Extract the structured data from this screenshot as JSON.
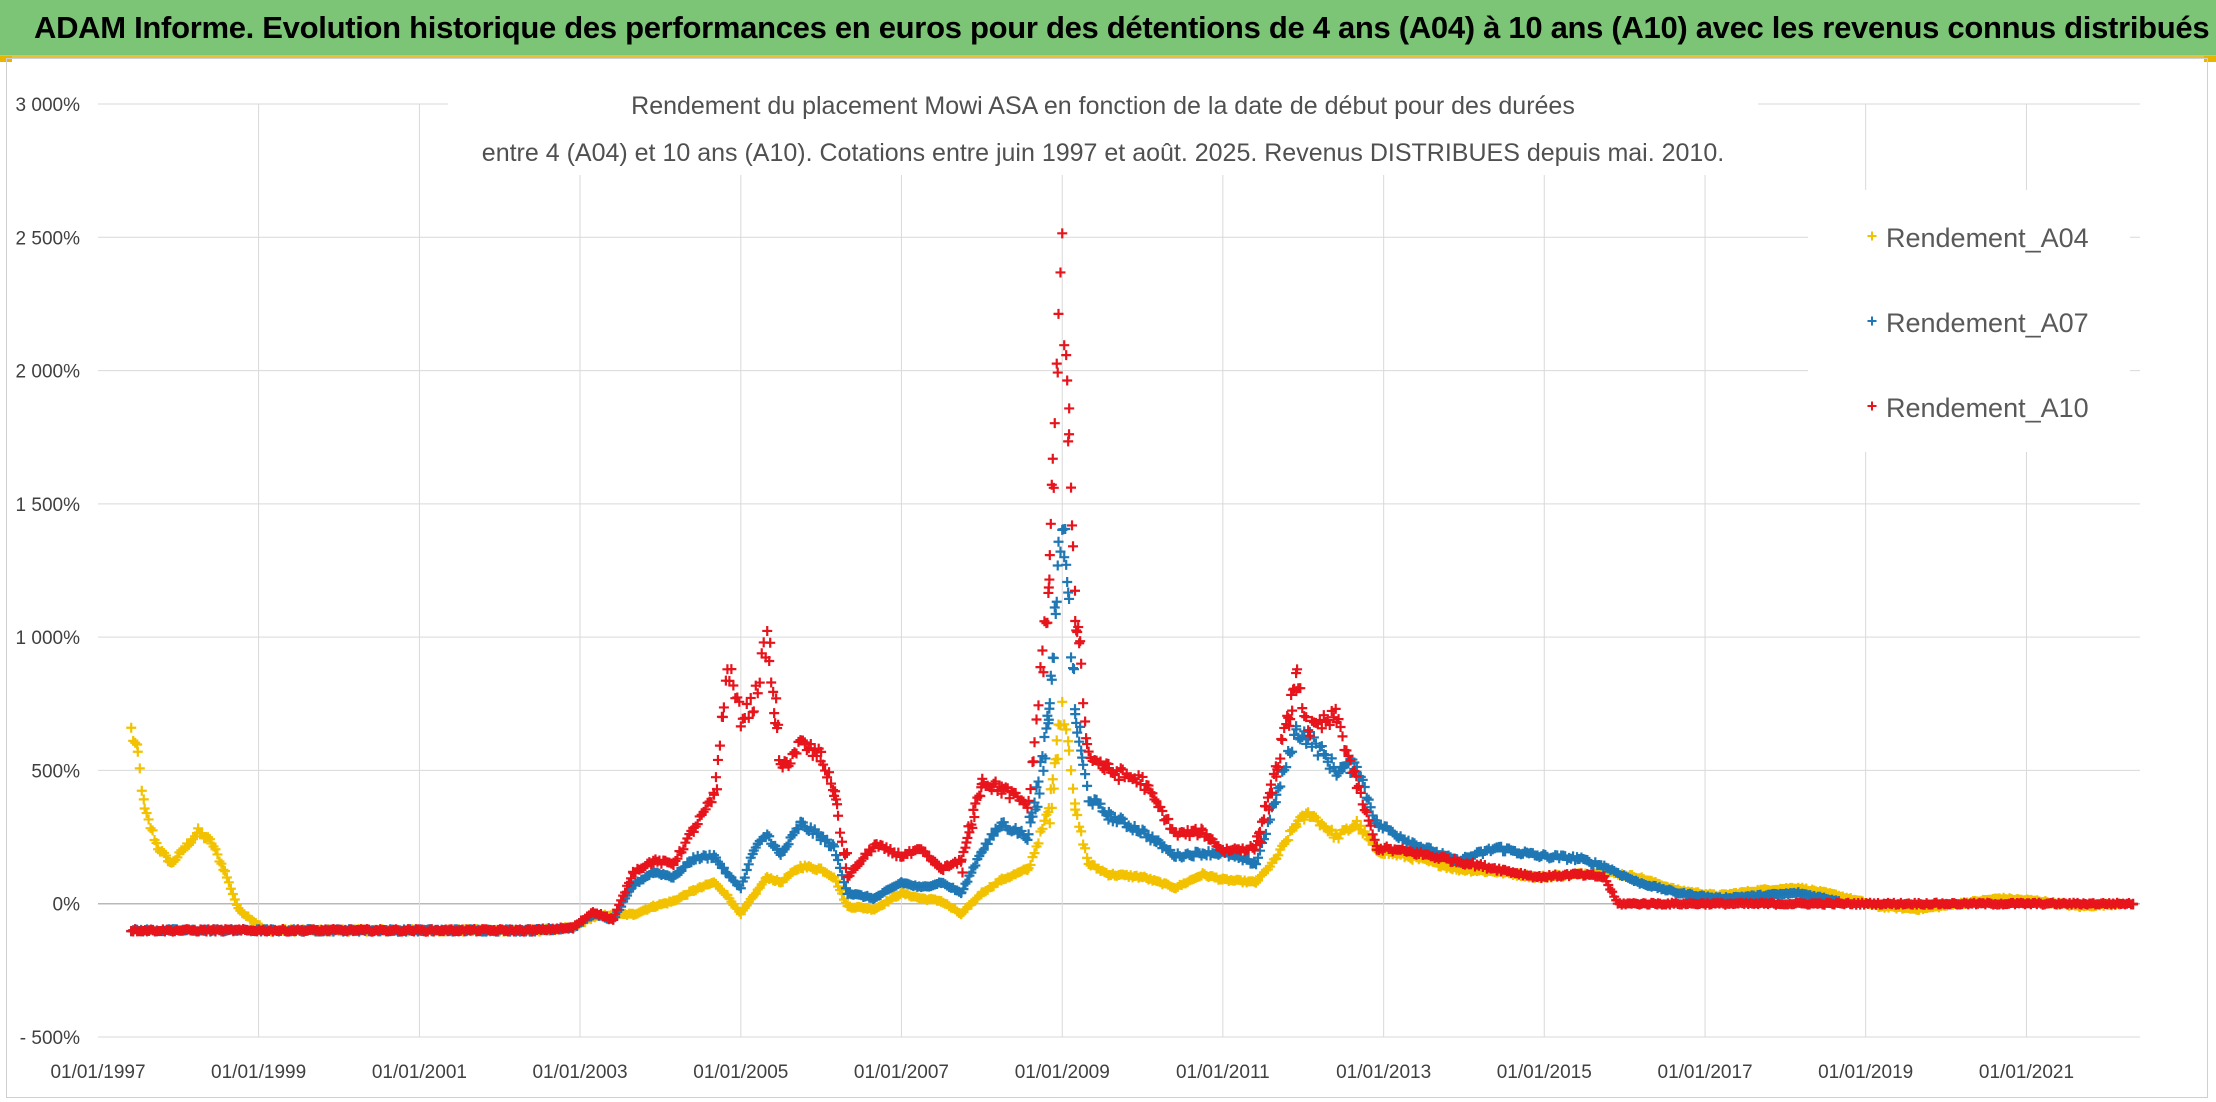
{
  "banner": {
    "text": "ADAM Informe. Evolution historique des performances en euros pour des détentions de 4 ans (A04) à 10 ans (A10) avec les revenus connus distribués"
  },
  "chart_data": {
    "type": "scatter",
    "title_line1": "Rendement du placement Mowi ASA en fonction de la date de début pour des durées",
    "title_line2": "entre 4 (A04) et 10 ans (A10). Cotations entre juin 1997 et août. 2025. Revenus DISTRIBUES depuis mai. 2010.",
    "xlabel": "",
    "ylabel": "",
    "x_range": [
      "1997-01-01",
      "2022-06-01"
    ],
    "ylim": [
      -500,
      3000
    ],
    "y_ticks": [
      -500,
      0,
      500,
      1000,
      1500,
      2000,
      2500,
      3000
    ],
    "y_tick_labels": [
      "- 500%",
      "0%",
      "500%",
      "1 000%",
      "1 500%",
      "2 000%",
      "2 500%",
      "3 000%"
    ],
    "x_tick_labels": [
      "01/01/1997",
      "01/01/1999",
      "01/01/2001",
      "01/01/2003",
      "01/01/2005",
      "01/01/2007",
      "01/01/2009",
      "01/01/2011",
      "01/01/2013",
      "01/01/2015",
      "01/01/2017",
      "01/01/2019",
      "01/01/2021"
    ],
    "grid": true,
    "legend_position": "top-right",
    "marker": "+",
    "series": [
      {
        "name": "Rendement_A04",
        "color": "#f2c200",
        "points": [
          [
            "1997-06-01",
            650
          ],
          [
            "1997-07-01",
            560
          ],
          [
            "1997-08-01",
            350
          ],
          [
            "1997-10-01",
            210
          ],
          [
            "1997-12-01",
            150
          ],
          [
            "1998-02-01",
            210
          ],
          [
            "1998-04-01",
            270
          ],
          [
            "1998-06-01",
            230
          ],
          [
            "1998-08-01",
            120
          ],
          [
            "1998-10-01",
            -20
          ],
          [
            "1998-12-01",
            -60
          ],
          [
            "1999-02-01",
            -100
          ],
          [
            "2000-01-01",
            -100
          ],
          [
            "2001-01-01",
            -100
          ],
          [
            "2002-01-01",
            -100
          ],
          [
            "2002-07-01",
            -100
          ],
          [
            "2002-12-01",
            -90
          ],
          [
            "2003-03-01",
            -50
          ],
          [
            "2003-06-01",
            -40
          ],
          [
            "2003-09-01",
            -40
          ],
          [
            "2003-12-01",
            -10
          ],
          [
            "2004-03-01",
            10
          ],
          [
            "2004-06-01",
            50
          ],
          [
            "2004-09-01",
            80
          ],
          [
            "2004-11-01",
            30
          ],
          [
            "2005-01-01",
            -40
          ],
          [
            "2005-03-01",
            30
          ],
          [
            "2005-05-01",
            100
          ],
          [
            "2005-07-01",
            80
          ],
          [
            "2005-10-01",
            140
          ],
          [
            "2006-01-01",
            130
          ],
          [
            "2006-03-01",
            100
          ],
          [
            "2006-05-01",
            -10
          ],
          [
            "2006-09-01",
            -20
          ],
          [
            "2007-01-01",
            40
          ],
          [
            "2007-04-01",
            20
          ],
          [
            "2007-07-01",
            10
          ],
          [
            "2007-10-01",
            -40
          ],
          [
            "2008-01-01",
            40
          ],
          [
            "2008-04-01",
            90
          ],
          [
            "2008-08-01",
            130
          ],
          [
            "2008-11-01",
            350
          ],
          [
            "2008-12-15",
            650
          ],
          [
            "2009-01-01",
            750
          ],
          [
            "2009-02-01",
            600
          ],
          [
            "2009-03-01",
            350
          ],
          [
            "2009-05-01",
            150
          ],
          [
            "2009-08-01",
            110
          ],
          [
            "2010-01-01",
            100
          ],
          [
            "2010-06-01",
            60
          ],
          [
            "2010-10-01",
            110
          ],
          [
            "2011-01-01",
            90
          ],
          [
            "2011-06-01",
            80
          ],
          [
            "2011-09-01",
            170
          ],
          [
            "2011-12-01",
            300
          ],
          [
            "2012-02-01",
            340
          ],
          [
            "2012-06-01",
            250
          ],
          [
            "2012-09-01",
            300
          ],
          [
            "2012-12-01",
            200
          ],
          [
            "2013-06-01",
            170
          ],
          [
            "2013-12-01",
            130
          ],
          [
            "2014-06-01",
            120
          ],
          [
            "2014-12-01",
            100
          ],
          [
            "2015-06-01",
            110
          ],
          [
            "2015-10-01",
            120
          ],
          [
            "2016-03-01",
            100
          ],
          [
            "2016-09-01",
            50
          ],
          [
            "2017-03-01",
            30
          ],
          [
            "2017-09-01",
            50
          ],
          [
            "2018-03-01",
            60
          ],
          [
            "2018-09-01",
            30
          ],
          [
            "2019-03-01",
            -10
          ],
          [
            "2019-09-01",
            -20
          ],
          [
            "2020-03-01",
            0
          ],
          [
            "2020-09-01",
            20
          ],
          [
            "2021-03-01",
            10
          ],
          [
            "2021-09-01",
            -10
          ],
          [
            "2022-03-01",
            0
          ]
        ]
      },
      {
        "name": "Rendement_A07",
        "color": "#1f77b4",
        "points": [
          [
            "1997-06-01",
            -100
          ],
          [
            "1998-06-01",
            -100
          ],
          [
            "1999-06-01",
            -100
          ],
          [
            "2000-06-01",
            -100
          ],
          [
            "2001-06-01",
            -100
          ],
          [
            "2002-06-01",
            -100
          ],
          [
            "2002-12-01",
            -90
          ],
          [
            "2003-03-01",
            -40
          ],
          [
            "2003-06-01",
            -60
          ],
          [
            "2003-09-01",
            70
          ],
          [
            "2003-12-01",
            120
          ],
          [
            "2004-03-01",
            100
          ],
          [
            "2004-06-01",
            170
          ],
          [
            "2004-09-01",
            180
          ],
          [
            "2004-11-01",
            110
          ],
          [
            "2005-01-01",
            60
          ],
          [
            "2005-03-01",
            200
          ],
          [
            "2005-05-01",
            260
          ],
          [
            "2005-07-01",
            180
          ],
          [
            "2005-10-01",
            300
          ],
          [
            "2006-01-01",
            250
          ],
          [
            "2006-03-01",
            210
          ],
          [
            "2006-05-01",
            40
          ],
          [
            "2006-09-01",
            20
          ],
          [
            "2007-01-01",
            80
          ],
          [
            "2007-04-01",
            60
          ],
          [
            "2007-07-01",
            80
          ],
          [
            "2007-10-01",
            40
          ],
          [
            "2008-01-01",
            200
          ],
          [
            "2008-04-01",
            300
          ],
          [
            "2008-08-01",
            250
          ],
          [
            "2008-11-01",
            700
          ],
          [
            "2008-12-15",
            1300
          ],
          [
            "2009-01-01",
            1450
          ],
          [
            "2009-02-01",
            1100
          ],
          [
            "2009-03-01",
            700
          ],
          [
            "2009-05-01",
            400
          ],
          [
            "2009-08-01",
            330
          ],
          [
            "2010-01-01",
            270
          ],
          [
            "2010-06-01",
            180
          ],
          [
            "2010-10-01",
            190
          ],
          [
            "2011-01-01",
            190
          ],
          [
            "2011-06-01",
            150
          ],
          [
            "2011-09-01",
            400
          ],
          [
            "2011-12-01",
            650
          ],
          [
            "2012-02-01",
            620
          ],
          [
            "2012-06-01",
            500
          ],
          [
            "2012-09-01",
            520
          ],
          [
            "2012-12-01",
            300
          ],
          [
            "2013-06-01",
            220
          ],
          [
            "2013-12-01",
            160
          ],
          [
            "2014-06-01",
            210
          ],
          [
            "2014-12-01",
            180
          ],
          [
            "2015-06-01",
            170
          ],
          [
            "2015-10-01",
            140
          ],
          [
            "2016-03-01",
            80
          ],
          [
            "2016-09-01",
            40
          ],
          [
            "2017-03-01",
            20
          ],
          [
            "2017-09-01",
            30
          ],
          [
            "2018-03-01",
            40
          ],
          [
            "2018-09-01",
            10
          ]
        ]
      },
      {
        "name": "Rendement_A10",
        "color": "#e8141c",
        "points": [
          [
            "1997-06-01",
            -100
          ],
          [
            "1998-06-01",
            -100
          ],
          [
            "1999-06-01",
            -100
          ],
          [
            "2000-06-01",
            -100
          ],
          [
            "2001-06-01",
            -100
          ],
          [
            "2002-06-01",
            -100
          ],
          [
            "2002-12-01",
            -90
          ],
          [
            "2003-03-01",
            -30
          ],
          [
            "2003-06-01",
            -60
          ],
          [
            "2003-09-01",
            120
          ],
          [
            "2003-12-01",
            160
          ],
          [
            "2004-03-01",
            150
          ],
          [
            "2004-06-01",
            280
          ],
          [
            "2004-09-01",
            400
          ],
          [
            "2004-11-01",
            900
          ],
          [
            "2005-01-01",
            700
          ],
          [
            "2005-03-01",
            750
          ],
          [
            "2005-05-01",
            1000
          ],
          [
            "2005-07-01",
            500
          ],
          [
            "2005-10-01",
            600
          ],
          [
            "2006-01-01",
            550
          ],
          [
            "2006-03-01",
            420
          ],
          [
            "2006-05-01",
            100
          ],
          [
            "2006-09-01",
            220
          ],
          [
            "2007-01-01",
            180
          ],
          [
            "2007-04-01",
            200
          ],
          [
            "2007-07-01",
            130
          ],
          [
            "2007-10-01",
            160
          ],
          [
            "2008-01-01",
            460
          ],
          [
            "2008-04-01",
            430
          ],
          [
            "2008-08-01",
            370
          ],
          [
            "2008-11-01",
            1200
          ],
          [
            "2008-12-15",
            2200
          ],
          [
            "2009-01-01",
            2400
          ],
          [
            "2009-02-01",
            1700
          ],
          [
            "2009-03-01",
            1100
          ],
          [
            "2009-05-01",
            560
          ],
          [
            "2009-08-01",
            500
          ],
          [
            "2010-01-01",
            460
          ],
          [
            "2010-06-01",
            260
          ],
          [
            "2010-10-01",
            270
          ],
          [
            "2011-01-01",
            200
          ],
          [
            "2011-06-01",
            210
          ],
          [
            "2011-09-01",
            500
          ],
          [
            "2011-12-01",
            830
          ],
          [
            "2012-02-01",
            650
          ],
          [
            "2012-06-01",
            700
          ],
          [
            "2012-09-01",
            450
          ],
          [
            "2012-12-01",
            210
          ],
          [
            "2013-06-01",
            190
          ],
          [
            "2013-12-01",
            160
          ],
          [
            "2014-06-01",
            130
          ],
          [
            "2014-12-01",
            100
          ],
          [
            "2015-06-01",
            110
          ],
          [
            "2015-10-01",
            100
          ],
          [
            "2015-12-01",
            0
          ],
          [
            "2016-06-01",
            0
          ],
          [
            "2017-06-01",
            0
          ],
          [
            "2018-06-01",
            0
          ],
          [
            "2019-06-01",
            0
          ],
          [
            "2020-06-01",
            0
          ],
          [
            "2021-06-01",
            0
          ],
          [
            "2022-05-01",
            0
          ]
        ]
      }
    ]
  }
}
